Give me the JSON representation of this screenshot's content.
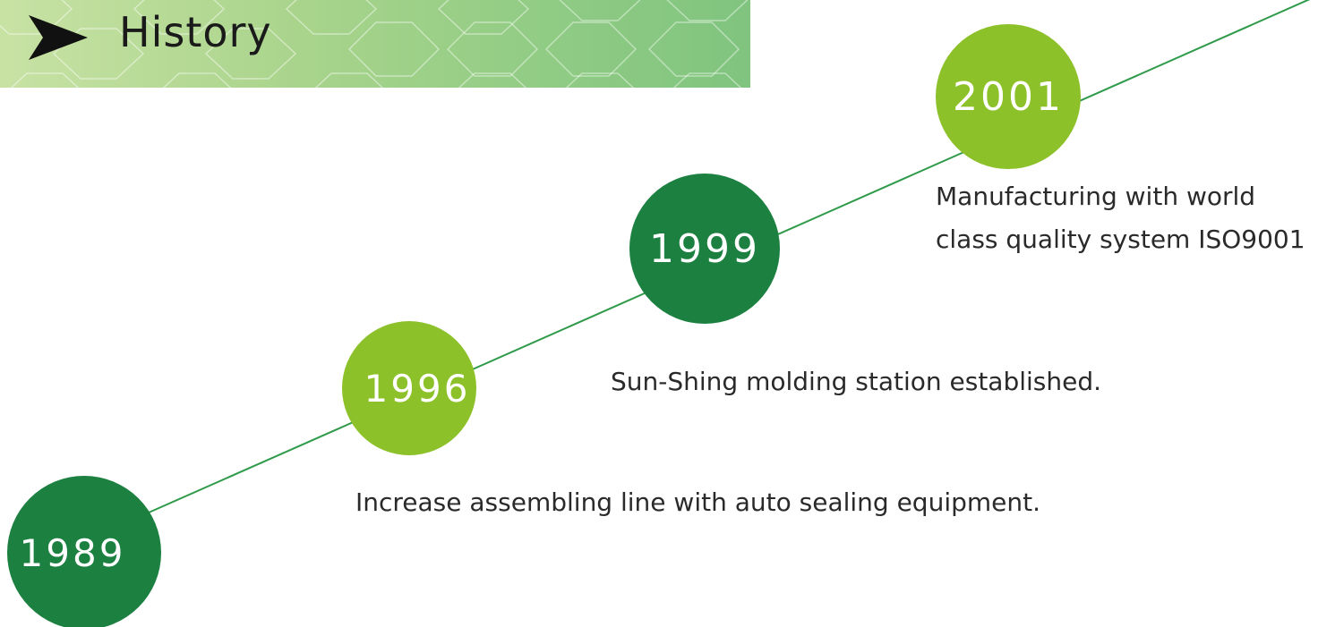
{
  "header": {
    "title": "History",
    "arrow_icon": "right-arrow-icon"
  },
  "colors": {
    "dark_green": "#1b8040",
    "light_green": "#8dc12a",
    "line_green": "#2e9a4a",
    "banner_start": "#c8e2a4",
    "banner_end": "#80c47f"
  },
  "timeline": [
    {
      "year": "1989",
      "description": "Increase assembling line with auto sealing equipment.",
      "style": "dark"
    },
    {
      "year": "1996",
      "description": "Sun-Shing molding station established.",
      "style": "light"
    },
    {
      "year": "1999",
      "description": "",
      "style": "dark"
    },
    {
      "year": "2001",
      "description_lines": [
        "Manufacturing with world",
        "class quality system ISO9001"
      ],
      "style": "light"
    }
  ]
}
